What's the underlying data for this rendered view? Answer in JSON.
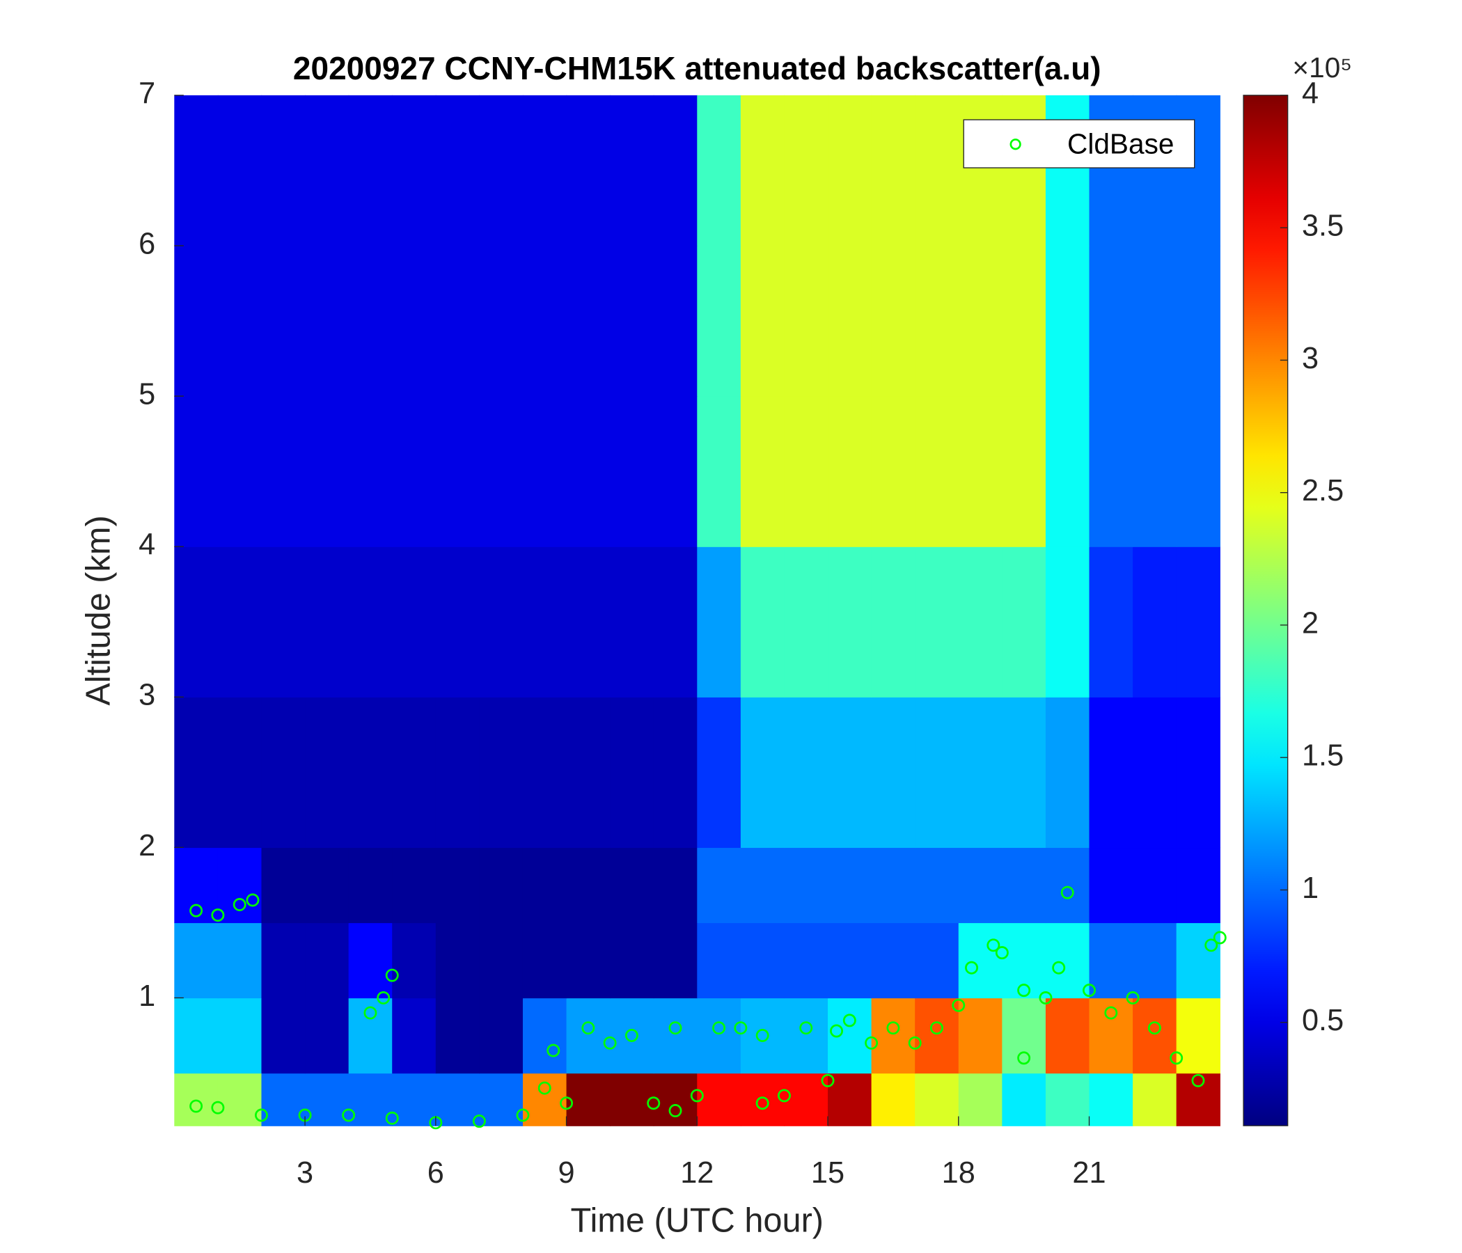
{
  "chart_data": {
    "type": "heatmap",
    "title": "20200927 CCNY-CHM15K attenuated backscatter(a.u)",
    "xlabel": "Time (UTC hour)",
    "ylabel": "Altitude (km)",
    "xlim": [
      0,
      24
    ],
    "ylim": [
      0.15,
      7
    ],
    "xticks": [
      3,
      6,
      9,
      12,
      15,
      18,
      21
    ],
    "yticks": [
      1,
      2,
      3,
      4,
      5,
      6,
      7
    ],
    "colormap": "jet",
    "clim": [
      0.11,
      4
    ],
    "colorbar_ticks": [
      0.5,
      1,
      1.5,
      2,
      2.5,
      3,
      3.5,
      4
    ],
    "colorbar_scale_label": "×10⁵",
    "x_edges": [
      0,
      1,
      2,
      3,
      4,
      5,
      6,
      7,
      8,
      9,
      10,
      11,
      12,
      13,
      14,
      15,
      16,
      17,
      18,
      19,
      20,
      21,
      22,
      23,
      24
    ],
    "y_edges": [
      0.15,
      0.5,
      1,
      1.5,
      2,
      3,
      4,
      5,
      6,
      7
    ],
    "z": [
      [
        2.2,
        2.2,
        1.0,
        1.0,
        1.0,
        1.0,
        1.0,
        1.0,
        3.0,
        4.0,
        4.0,
        4.0,
        3.5,
        3.5,
        3.5,
        3.8,
        2.6,
        2.4,
        2.2,
        1.5,
        1.8,
        1.6,
        2.4,
        3.8
      ],
      [
        1.4,
        1.4,
        0.3,
        0.3,
        1.3,
        0.4,
        0.2,
        0.2,
        1.0,
        1.2,
        1.2,
        1.2,
        1.2,
        1.3,
        1.3,
        1.5,
        3.0,
        3.2,
        3.0,
        2.0,
        3.2,
        3.0,
        3.2,
        2.5
      ],
      [
        1.2,
        1.2,
        0.3,
        0.3,
        0.6,
        0.3,
        0.2,
        0.2,
        0.2,
        0.2,
        0.2,
        0.2,
        0.9,
        0.9,
        0.9,
        0.9,
        0.9,
        0.9,
        1.6,
        1.6,
        1.6,
        1.0,
        1.0,
        1.4
      ],
      [
        0.6,
        0.6,
        0.2,
        0.2,
        0.2,
        0.2,
        0.2,
        0.2,
        0.2,
        0.2,
        0.2,
        0.2,
        1.0,
        1.0,
        1.0,
        1.0,
        1.0,
        1.0,
        1.0,
        1.0,
        1.0,
        0.6,
        0.6,
        0.6
      ],
      [
        0.3,
        0.3,
        0.3,
        0.3,
        0.3,
        0.3,
        0.3,
        0.3,
        0.3,
        0.3,
        0.3,
        0.3,
        0.8,
        1.3,
        1.3,
        1.3,
        1.3,
        1.3,
        1.3,
        1.3,
        1.2,
        0.6,
        0.6,
        0.6
      ],
      [
        0.4,
        0.4,
        0.4,
        0.4,
        0.4,
        0.4,
        0.4,
        0.4,
        0.4,
        0.4,
        0.4,
        0.4,
        1.2,
        1.8,
        1.8,
        1.8,
        1.8,
        1.8,
        1.8,
        1.8,
        1.6,
        0.8,
        0.7,
        0.7
      ],
      [
        0.5,
        0.5,
        0.5,
        0.5,
        0.5,
        0.5,
        0.5,
        0.5,
        0.5,
        0.5,
        0.5,
        0.5,
        1.8,
        2.4,
        2.4,
        2.4,
        2.4,
        2.4,
        2.4,
        2.4,
        1.6,
        1.0,
        1.0,
        1.0
      ],
      [
        0.5,
        0.5,
        0.5,
        0.5,
        0.5,
        0.5,
        0.5,
        0.5,
        0.5,
        0.5,
        0.5,
        0.5,
        1.8,
        2.4,
        2.4,
        2.4,
        2.4,
        2.4,
        2.4,
        2.4,
        1.6,
        1.0,
        1.0,
        1.0
      ],
      [
        0.5,
        0.5,
        0.5,
        0.5,
        0.5,
        0.5,
        0.5,
        0.5,
        0.5,
        0.5,
        0.5,
        0.5,
        1.8,
        2.4,
        2.4,
        2.4,
        2.4,
        2.4,
        2.4,
        2.4,
        1.6,
        1.0,
        1.0,
        1.0
      ]
    ],
    "legend": "upper right",
    "series": [
      {
        "name": "CldBase",
        "color": "#00ff00",
        "type": "scatter",
        "x": [
          0.5,
          1,
          1.5,
          1.8,
          0.5,
          1,
          2,
          3,
          4,
          4.5,
          4.8,
          5,
          5,
          6,
          7,
          8,
          8.5,
          8.7,
          9,
          9.5,
          10,
          10.5,
          11,
          11.5,
          11.5,
          12,
          12.5,
          13,
          13.5,
          13.5,
          14,
          14.5,
          15,
          15.2,
          15.5,
          16,
          16.5,
          17,
          17.5,
          18,
          18.3,
          18.8,
          19,
          19.5,
          19.5,
          20,
          20.3,
          20.5,
          21,
          21.5,
          22,
          22.5,
          23,
          23.5,
          23.8,
          24
        ],
        "y": [
          1.58,
          1.55,
          1.62,
          1.65,
          0.28,
          0.27,
          0.22,
          0.22,
          0.22,
          0.9,
          1.0,
          1.15,
          0.2,
          0.17,
          0.18,
          0.22,
          0.4,
          0.65,
          0.3,
          0.8,
          0.7,
          0.75,
          0.3,
          0.25,
          0.8,
          0.35,
          0.8,
          0.8,
          0.3,
          0.75,
          0.35,
          0.8,
          0.45,
          0.78,
          0.85,
          0.7,
          0.8,
          0.7,
          0.8,
          0.95,
          1.2,
          1.35,
          1.3,
          1.05,
          0.6,
          1.0,
          1.2,
          1.7,
          1.05,
          0.9,
          1.0,
          0.8,
          0.6,
          0.45,
          1.35,
          1.4
        ]
      }
    ]
  }
}
